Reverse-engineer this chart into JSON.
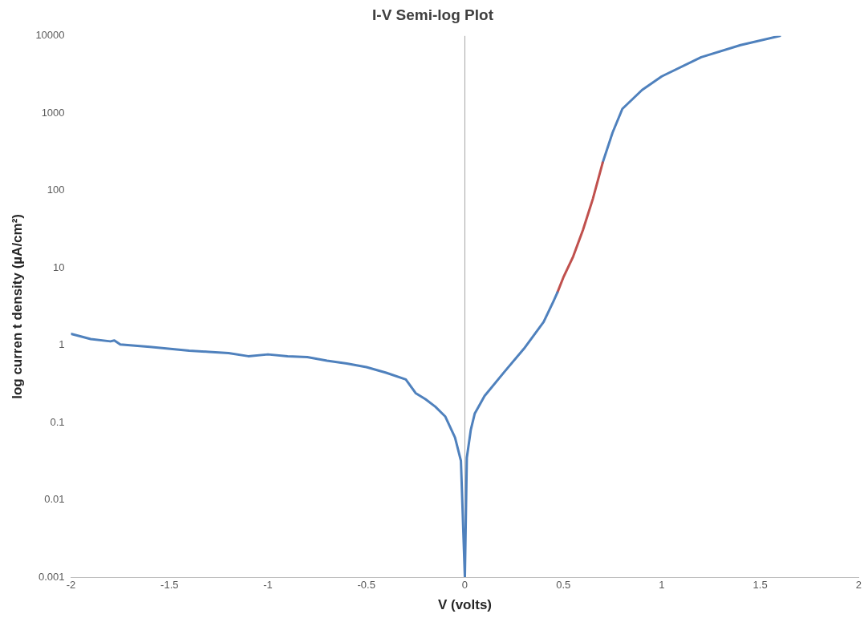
{
  "chart_data": {
    "type": "line",
    "title": "I-V Semi-log Plot",
    "xlabel": "V (volts)",
    "ylabel": "log curren t density (µA/cm²)",
    "log": "y",
    "grid": false,
    "legend": false,
    "marker": "none",
    "line_style": "solid",
    "xlim": [
      -2,
      2
    ],
    "xticks": [
      -2,
      -1.5,
      -1,
      -0.5,
      0,
      0.5,
      1,
      1.5,
      2
    ],
    "ylim": [
      0.001,
      10000
    ],
    "yticks": [
      0.001,
      0.01,
      0.1,
      1,
      10,
      100,
      1000,
      10000
    ],
    "ref_lines": [
      {
        "axis": "x",
        "value": 0,
        "color": "#a6a6a6"
      }
    ],
    "series": [
      {
        "color": "#4f81bd",
        "x": [
          -2,
          -1.9,
          -1.8,
          -1.78,
          -1.75,
          -1.6,
          -1.4,
          -1.3,
          -1.2,
          -1.1,
          -1,
          -0.9,
          -0.8,
          -0.7,
          -0.6,
          -0.5,
          -0.4,
          -0.3,
          -0.25,
          -0.2,
          -0.15,
          -0.1,
          -0.05,
          -0.02,
          0,
          0.01,
          0.03,
          0.05,
          0.1,
          0.2,
          0.3,
          0.4,
          0.45,
          0.47
        ],
        "values": [
          1.4,
          1.2,
          1.12,
          1.15,
          1.02,
          0.95,
          0.85,
          0.82,
          0.79,
          0.72,
          0.76,
          0.72,
          0.7,
          0.63,
          0.58,
          0.52,
          0.44,
          0.36,
          0.24,
          0.2,
          0.16,
          0.12,
          0.064,
          0.032,
          0.001,
          0.035,
          0.08,
          0.13,
          0.22,
          0.45,
          0.9,
          2,
          3.7,
          4.8
        ]
      },
      {
        "color": "#c0504d",
        "x": [
          0.47,
          0.5,
          0.55,
          0.6,
          0.65,
          0.7
        ],
        "values": [
          4.8,
          7.5,
          14,
          31,
          78,
          230
        ]
      },
      {
        "color": "#4f81bd",
        "x": [
          0.7,
          0.75,
          0.8,
          0.9,
          1,
          1.2,
          1.4,
          1.6
        ],
        "values": [
          230,
          560,
          1140,
          2000,
          3000,
          5300,
          7600,
          10000
        ]
      }
    ]
  }
}
